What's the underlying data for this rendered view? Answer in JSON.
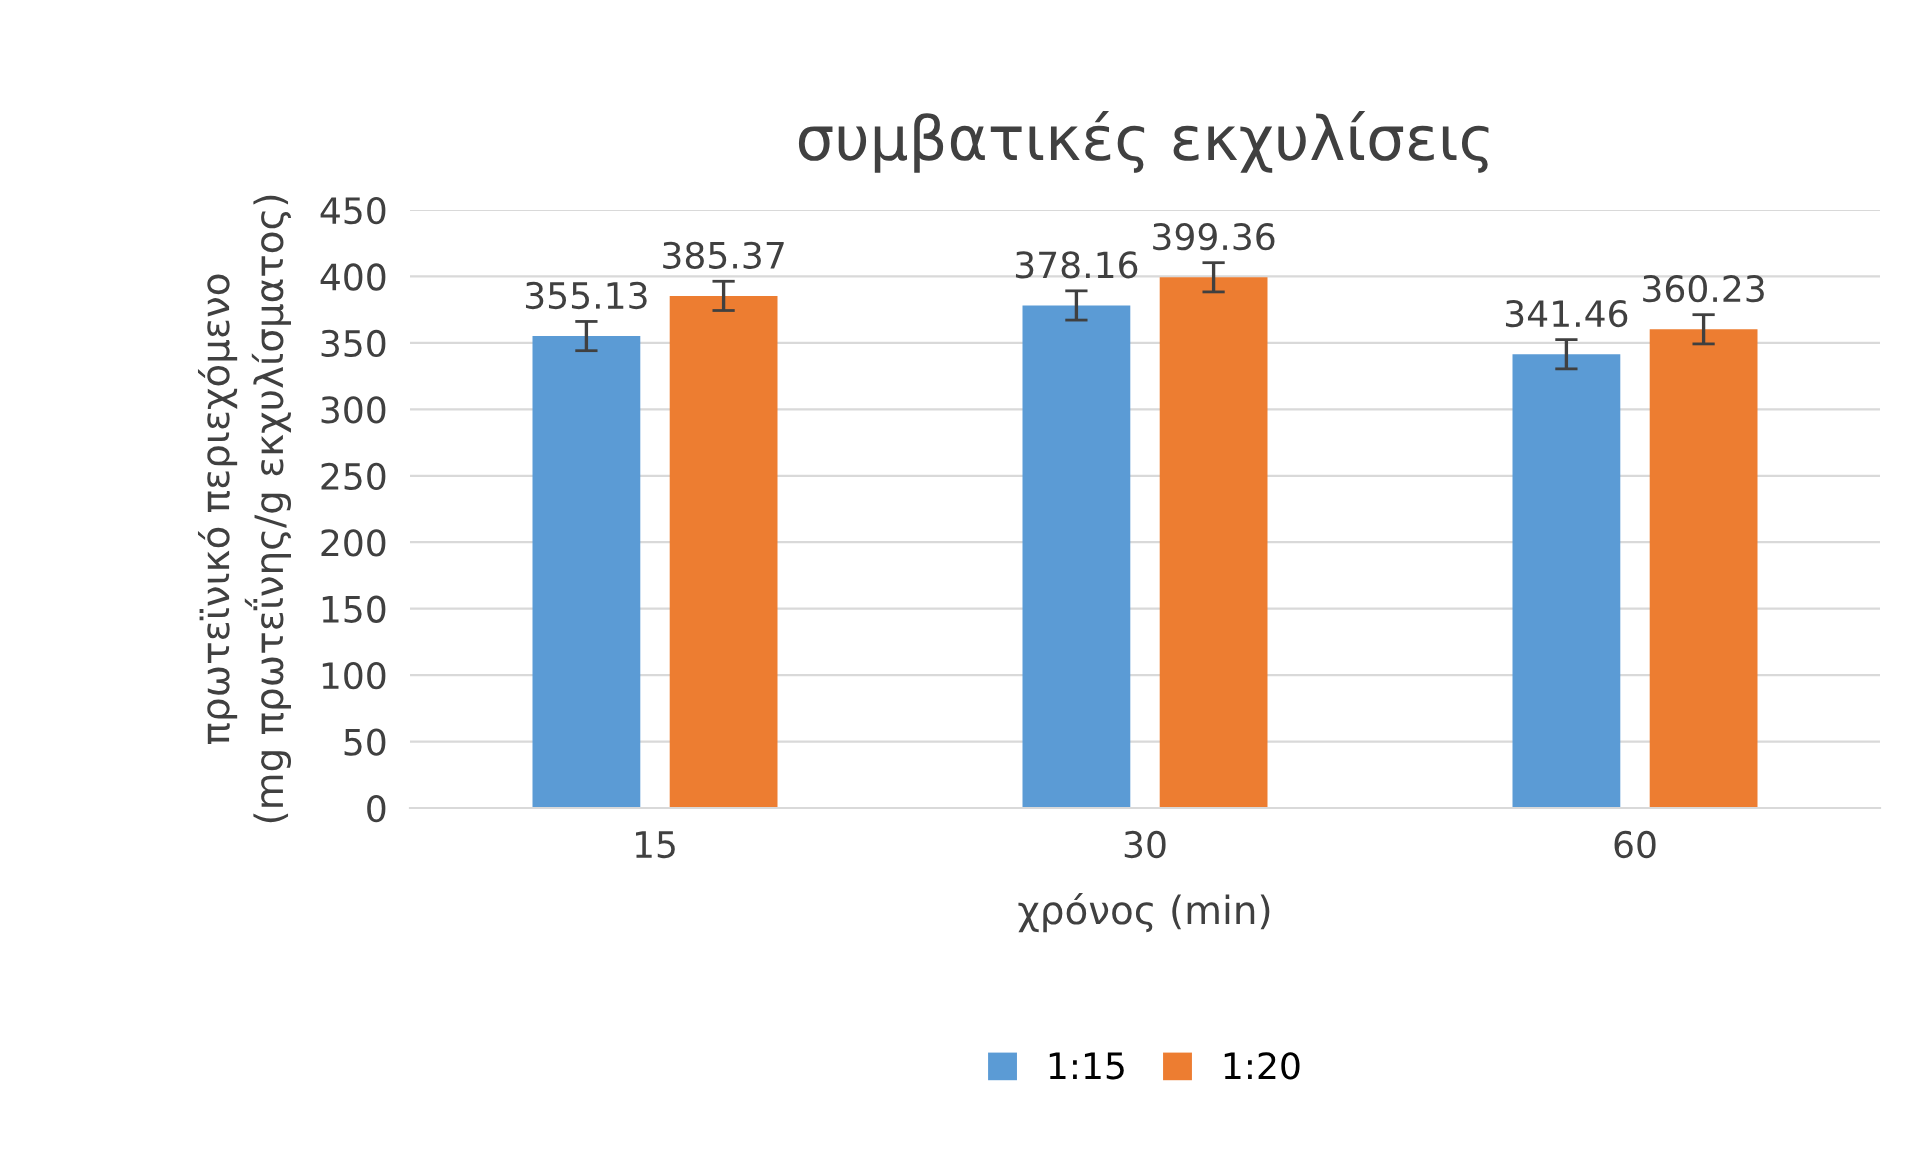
{
  "chart_data": {
    "type": "bar",
    "title": "συμβατικές εκχυλίσεις",
    "xlabel": "χρόνος (min)",
    "ylabel": "πρωτεϊνικό περιεχόμενο\n(mg πρωτεΐνης/g εκχυλίσματος)",
    "categories": [
      "15",
      "30",
      "60"
    ],
    "series": [
      {
        "name": "1:15",
        "color": "#5b9bd5",
        "values": [
          355.13,
          378.16,
          341.46
        ],
        "errors": [
          11,
          11,
          11
        ]
      },
      {
        "name": "1:20",
        "color": "#ed7d31",
        "values": [
          385.37,
          399.36,
          360.23
        ],
        "errors": [
          11,
          11,
          11
        ]
      }
    ],
    "ylim": [
      0,
      450
    ],
    "yticks": [
      0,
      50,
      100,
      150,
      200,
      250,
      300,
      350,
      400,
      450
    ],
    "grid": "y",
    "legend": "bottom",
    "data_labels": true
  }
}
